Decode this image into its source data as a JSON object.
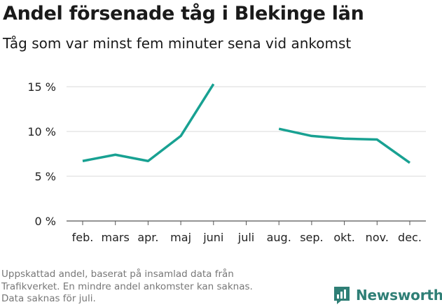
{
  "header": {
    "title": "Andel försenade tåg i Blekinge län",
    "subtitle": "Tåg som var minst fem minuter sena vid ankomst"
  },
  "footnote": {
    "lines": [
      "Uppskattad andel, baserat på insamlad data från",
      "Trafikverket. En mindre andel ankomster kan saknas.",
      "Data saknas för juli."
    ]
  },
  "brand": {
    "name": "Newsworthy",
    "icon": "newsworthy-logo-icon",
    "color": "#2f7f76"
  },
  "chart_data": {
    "type": "line",
    "categories": [
      "feb.",
      "mars",
      "apr.",
      "maj",
      "juni",
      "juli",
      "aug.",
      "sep.",
      "okt.",
      "nov.",
      "dec."
    ],
    "series": [
      {
        "values": [
          6.7,
          7.4,
          6.7,
          9.5,
          15.3,
          null,
          10.3,
          9.5,
          9.2,
          9.1,
          6.5
        ],
        "color": "#18a192"
      }
    ],
    "yticks": [
      0,
      5,
      10,
      15
    ],
    "ytick_labels": [
      "0 %",
      "5 %",
      "10 %",
      "15 %"
    ],
    "ylim": [
      0,
      16
    ],
    "grid": true,
    "legend": "none"
  }
}
